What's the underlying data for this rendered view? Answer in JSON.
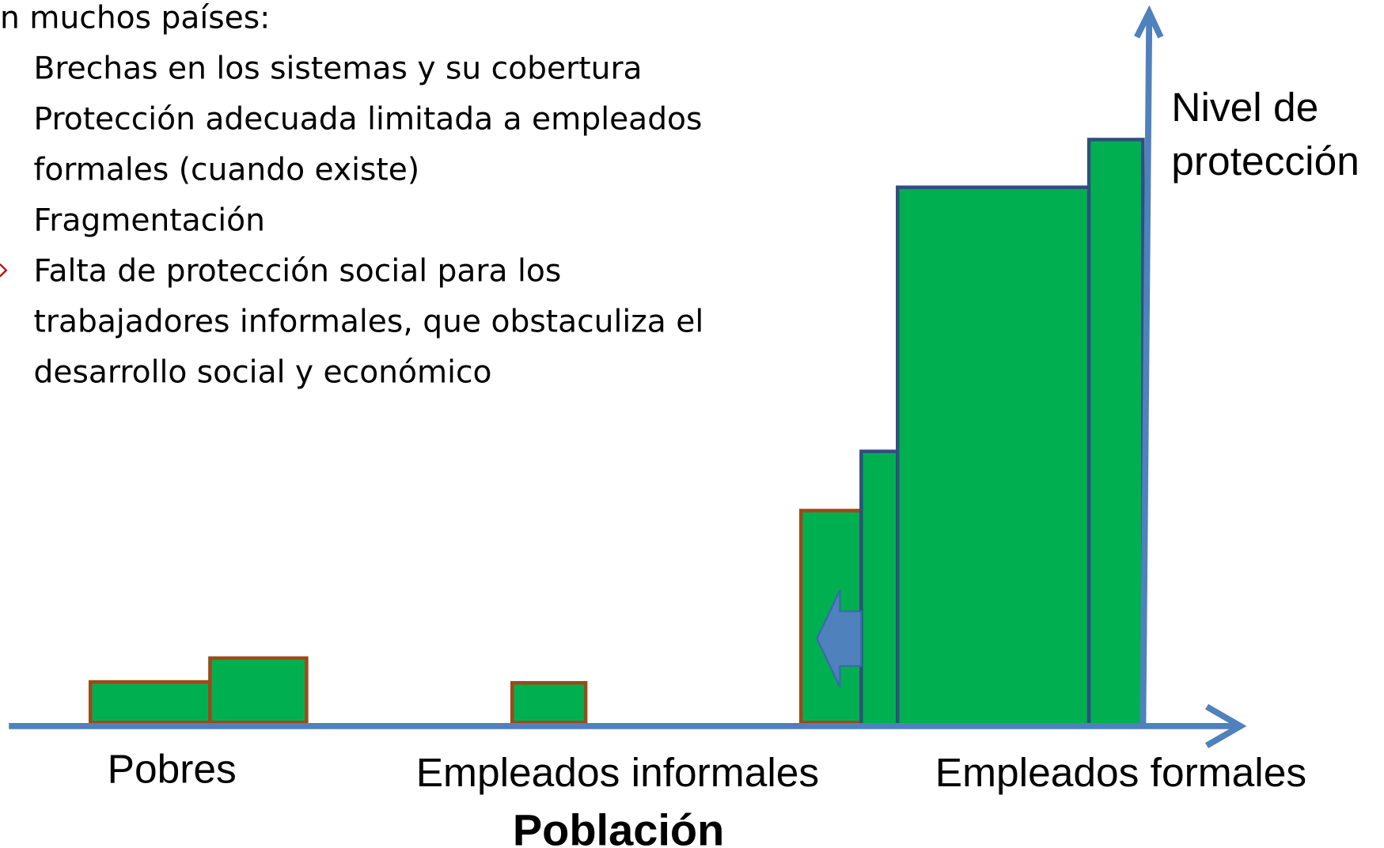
{
  "intro": "n muchos países:",
  "bullets": [
    {
      "lines": [
        "Brechas en los sistemas y su cobertura"
      ]
    },
    {
      "lines": [
        "Protección adecuada limitada a empleados",
        "formales (cuando existe)"
      ]
    },
    {
      "lines": [
        "Fragmentación"
      ]
    },
    {
      "lines": [
        "Falta de protección social para los",
        "trabajadores informales, que obstaculiza el",
        "desarrollo social y económico"
      ]
    }
  ],
  "y_axis_label": [
    "Nivel de",
    "protección"
  ],
  "groups": [
    "Pobres",
    "Empleados informales",
    "Empleados formales"
  ],
  "x_axis_label": "Población"
}
